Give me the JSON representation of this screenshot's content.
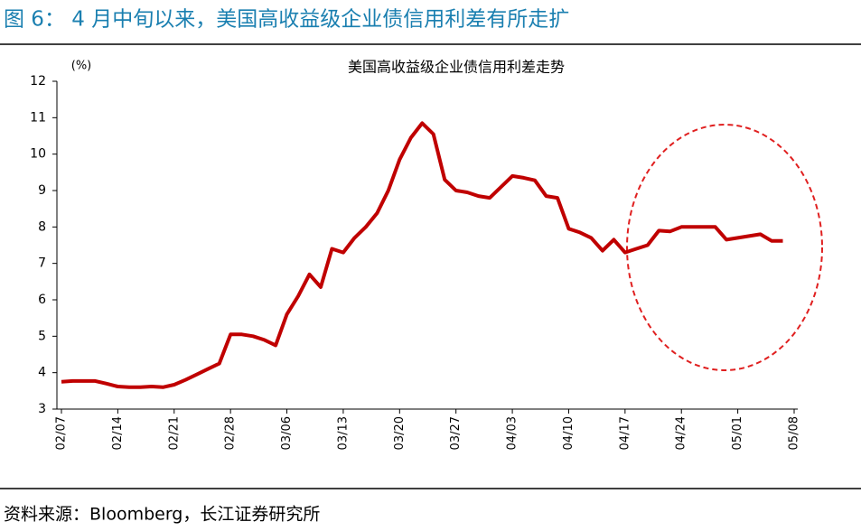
{
  "header": {
    "title": "图 6： 4 月中旬以来，美国高收益级企业债信用利差有所走扩"
  },
  "chart_data": {
    "type": "line",
    "title": "美国高收益级企业债信用利差走势",
    "ylabel": "(%)",
    "categories": [
      "02/07",
      null,
      null,
      null,
      null,
      "02/14",
      null,
      null,
      null,
      null,
      "02/21",
      null,
      null,
      null,
      null,
      "02/28",
      null,
      null,
      null,
      null,
      "03/06",
      null,
      null,
      null,
      null,
      "03/13",
      null,
      null,
      null,
      null,
      "03/20",
      null,
      null,
      null,
      null,
      "03/27",
      null,
      null,
      null,
      null,
      "04/03",
      null,
      null,
      null,
      null,
      "04/10",
      null,
      null,
      null,
      null,
      "04/17",
      null,
      null,
      null,
      null,
      "04/24",
      null,
      null,
      null,
      null,
      "05/01",
      null,
      null,
      null,
      null,
      "05/08"
    ],
    "series": [
      {
        "name": "美国高收益级企业债信用利差",
        "color": "#c00000",
        "values": [
          3.75,
          3.77,
          3.77,
          3.77,
          3.7,
          3.62,
          3.6,
          3.6,
          3.62,
          3.6,
          3.67,
          3.8,
          3.95,
          4.1,
          4.25,
          5.05,
          5.05,
          5.0,
          4.9,
          4.75,
          5.6,
          6.1,
          6.7,
          6.35,
          7.4,
          7.3,
          7.7,
          8.0,
          8.38,
          9.0,
          9.85,
          10.45,
          10.85,
          10.55,
          9.3,
          9.0,
          8.95,
          8.85,
          8.8,
          9.1,
          9.4,
          9.35,
          9.28,
          8.85,
          8.8,
          7.95,
          7.85,
          7.7,
          7.35,
          7.65,
          7.3,
          7.4,
          7.5,
          7.9,
          7.88,
          8.0,
          8.0,
          8.0,
          8.0,
          7.65,
          7.7,
          7.75,
          7.8,
          7.62,
          7.62,
          null
        ]
      }
    ],
    "ylim": [
      3,
      12
    ],
    "yticks": [
      3,
      4,
      5,
      6,
      7,
      8,
      9,
      10,
      11,
      12
    ]
  },
  "footer": {
    "source": "资料来源：Bloomberg，长江证券研究所"
  }
}
